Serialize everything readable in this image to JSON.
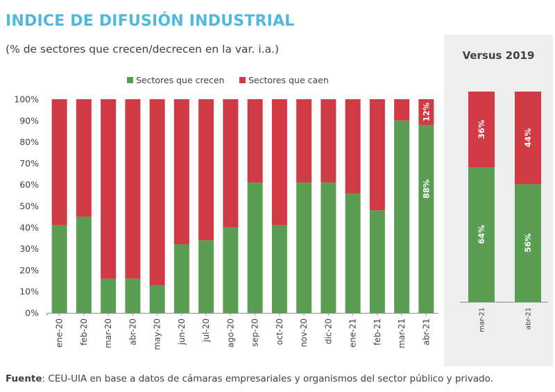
{
  "title": "INDICE DE DIFUSIÓN INDUSTRIAL",
  "subtitle": "(% de sectores que crecen/decrecen en la var. i.a.)",
  "footer": {
    "label": "Fuente",
    "text": ": CEU-UIA en base a datos de cámaras empresariales y organismos del sector público y privado."
  },
  "colors": {
    "grow": "#5a9e53",
    "fall": "#cf3a44"
  },
  "chart_data": [
    {
      "type": "bar",
      "stacked": true,
      "title": "",
      "xlabel": "",
      "ylabel": "",
      "ylim": [
        0,
        100
      ],
      "yticks": [
        "0%",
        "10%",
        "20%",
        "30%",
        "40%",
        "50%",
        "60%",
        "70%",
        "80%",
        "90%",
        "100%"
      ],
      "legend": {
        "position": "top",
        "entries": [
          "Sectores que crecen",
          "Sectores que caen"
        ]
      },
      "categories": [
        "ene-20",
        "feb-20",
        "mar-20",
        "abr-20",
        "may-20",
        "jun-20",
        "jul-20",
        "ago-20",
        "sep-20",
        "oct-20",
        "nov-20",
        "dic-20",
        "ene-21",
        "feb-21",
        "mar-21",
        "abr-21"
      ],
      "series": [
        {
          "name": "Sectores que crecen",
          "values": [
            41,
            45,
            16,
            16,
            13,
            32,
            34,
            40,
            61,
            41,
            61,
            61,
            56,
            48,
            90,
            88
          ]
        },
        {
          "name": "Sectores que caen",
          "values": [
            59,
            55,
            84,
            84,
            87,
            68,
            66,
            60,
            39,
            59,
            39,
            39,
            44,
            52,
            10,
            12
          ]
        }
      ],
      "data_labels": [
        {
          "category": "abr-21",
          "series": "Sectores que crecen",
          "text": "88%"
        },
        {
          "category": "abr-21",
          "series": "Sectores que caen",
          "text": "12%"
        }
      ]
    },
    {
      "type": "bar",
      "stacked": true,
      "title": "Versus 2019",
      "ylim": [
        0,
        100
      ],
      "categories": [
        "mar-21",
        "abr-21"
      ],
      "series": [
        {
          "name": "Sectores que crecen",
          "values": [
            64,
            56
          ]
        },
        {
          "name": "Sectores que caen",
          "values": [
            36,
            44
          ]
        }
      ],
      "data_labels": [
        {
          "category": "mar-21",
          "series": "Sectores que crecen",
          "text": "64%"
        },
        {
          "category": "mar-21",
          "series": "Sectores que caen",
          "text": "36%"
        },
        {
          "category": "abr-21",
          "series": "Sectores que crecen",
          "text": "56%"
        },
        {
          "category": "abr-21",
          "series": "Sectores que caen",
          "text": "44%"
        }
      ]
    }
  ]
}
